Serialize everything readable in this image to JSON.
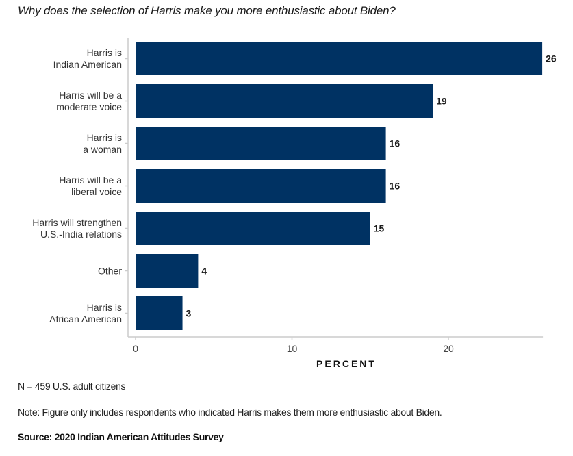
{
  "title": "Why does the selection of Harris make you more enthusiastic about Biden?",
  "sample_note": "N = 459 U.S. adult citizens",
  "figure_note": "Note: Figure only includes respondents who indicated Harris makes them more enthusiastic about Biden.",
  "source": "Source: 2020 Indian American Attitudes Survey",
  "colors": {
    "bar": "#003263",
    "axis": "#cccccc"
  },
  "chart_data": {
    "type": "bar",
    "orientation": "horizontal",
    "title": "Why does the selection of Harris make you more enthusiastic about Biden?",
    "xlabel": "PERCENT",
    "ylabel": "",
    "xlim": [
      0,
      26
    ],
    "xticks": [
      0,
      10,
      20
    ],
    "grid": false,
    "legend": "none",
    "categories": [
      [
        "Harris is",
        "Indian American"
      ],
      [
        "Harris will be a",
        "moderate voice"
      ],
      [
        "Harris is",
        "a woman"
      ],
      [
        "Harris will be a",
        "liberal voice"
      ],
      [
        "Harris will strengthen",
        "U.S.-India relations"
      ],
      [
        "Other"
      ],
      [
        "Harris is",
        "African American"
      ]
    ],
    "values": [
      26,
      19,
      16,
      16,
      15,
      4,
      3
    ]
  }
}
